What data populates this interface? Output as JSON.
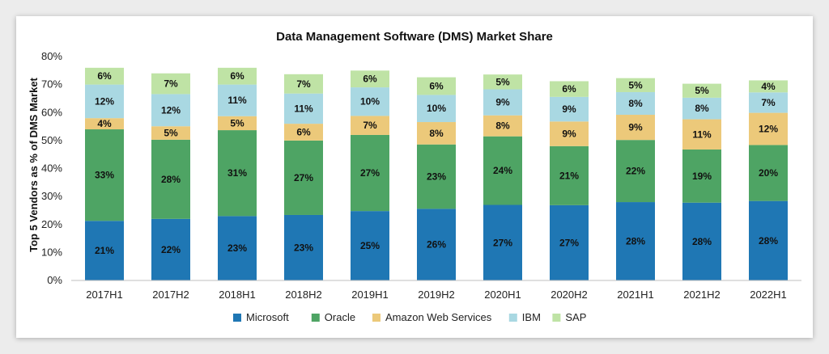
{
  "chart_data": {
    "type": "bar",
    "stacked": true,
    "title": "Data Management Software (DMS) Market Share",
    "xlabel": "",
    "ylabel": "Top 5 Vendors as % of DMS Market",
    "ylim": [
      0,
      80
    ],
    "yticks": [
      "0%",
      "10%",
      "20%",
      "30%",
      "40%",
      "50%",
      "60%",
      "70%",
      "80%"
    ],
    "grid": false,
    "legend_position": "bottom",
    "categories": [
      "2017H1",
      "2017H2",
      "2018H1",
      "2018H2",
      "2019H1",
      "2019H2",
      "2020H1",
      "2020H2",
      "2021H1",
      "2021H2",
      "2022H1"
    ],
    "series": [
      {
        "name": "Microsoft",
        "color": "#1f77b4",
        "values": [
          21.3,
          22.0,
          23.0,
          23.4,
          24.8,
          25.6,
          27.0,
          26.9,
          28.0,
          27.8,
          28.4
        ],
        "labels": [
          "21%",
          "22%",
          "23%",
          "23%",
          "25%",
          "26%",
          "27%",
          "27%",
          "28%",
          "28%",
          "28%"
        ]
      },
      {
        "name": "Oracle",
        "color": "#4ea464",
        "values": [
          32.7,
          28.3,
          30.7,
          26.6,
          27.2,
          23.0,
          24.5,
          21.1,
          22.2,
          19.0,
          20.0
        ],
        "labels": [
          "33%",
          "28%",
          "31%",
          "27%",
          "27%",
          "23%",
          "24%",
          "21%",
          "22%",
          "19%",
          "20%"
        ]
      },
      {
        "name": "Amazon Web Services",
        "color": "#ecc97a",
        "values": [
          4.0,
          4.8,
          5.0,
          6.0,
          6.8,
          8.0,
          7.5,
          8.8,
          9.0,
          10.8,
          11.5
        ],
        "labels": [
          "4%",
          "5%",
          "5%",
          "6%",
          "7%",
          "8%",
          "8%",
          "9%",
          "9%",
          "11%",
          "12%"
        ]
      },
      {
        "name": "IBM",
        "color": "#a9d8e2",
        "values": [
          12.0,
          11.5,
          11.3,
          10.8,
          10.2,
          9.7,
          9.3,
          8.8,
          8.1,
          7.7,
          7.3
        ],
        "labels": [
          "12%",
          "12%",
          "11%",
          "11%",
          "10%",
          "10%",
          "9%",
          "9%",
          "8%",
          "8%",
          "7%"
        ]
      },
      {
        "name": "SAP",
        "color": "#bfe3a5",
        "values": [
          6.0,
          7.4,
          6.0,
          6.9,
          6.0,
          6.3,
          5.3,
          5.6,
          5.0,
          5.0,
          4.3
        ],
        "labels": [
          "6%",
          "7%",
          "6%",
          "7%",
          "6%",
          "6%",
          "5%",
          "6%",
          "5%",
          "5%",
          "4%"
        ]
      }
    ]
  }
}
